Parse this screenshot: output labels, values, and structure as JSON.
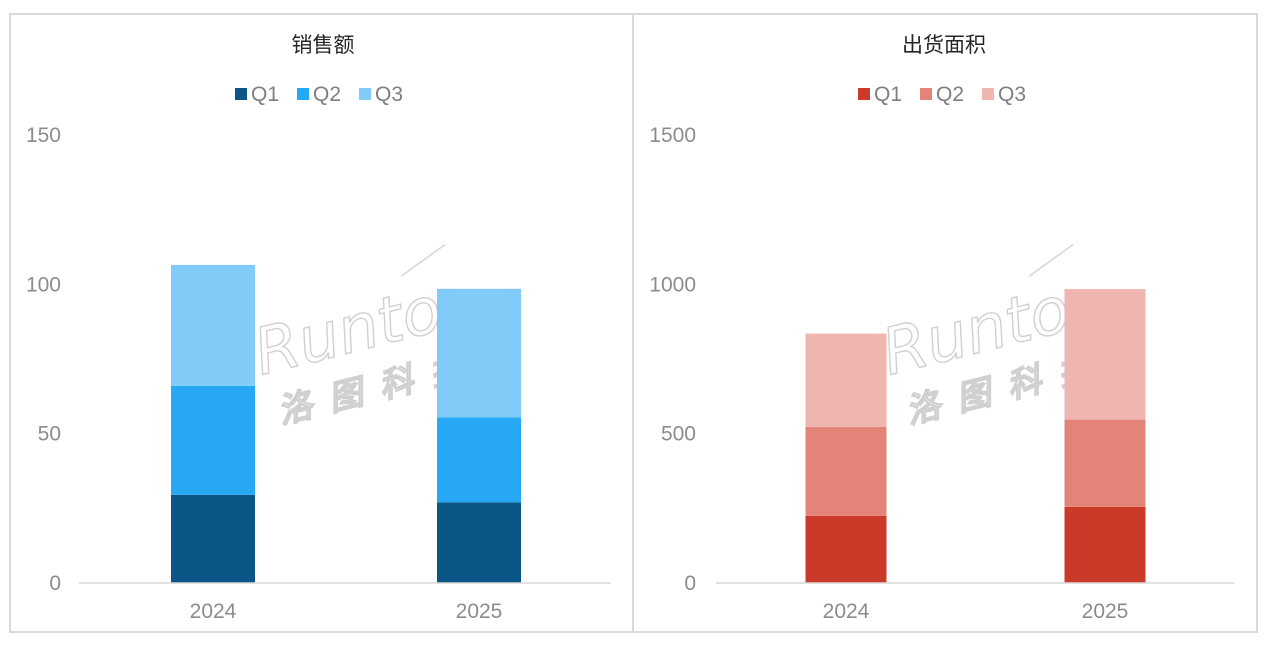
{
  "chart_data": [
    {
      "type": "bar",
      "stacked": true,
      "title": "销售额",
      "categories": [
        "2024",
        "2025"
      ],
      "series": [
        {
          "name": "Q1",
          "color": "#0a5686",
          "values": [
            29.5,
            27
          ]
        },
        {
          "name": "Q2",
          "color": "#27a8f5",
          "values": [
            36.5,
            28.5
          ]
        },
        {
          "name": "Q3",
          "color": "#80cbf8",
          "values": [
            40.5,
            43
          ]
        }
      ],
      "ylim": [
        0,
        150
      ],
      "yticks": [
        0,
        50,
        100,
        150
      ],
      "legend": "top",
      "grid": false,
      "xlabel": "",
      "ylabel": "",
      "watermark": {
        "latin": "Runto",
        "cjk": "洛图科技"
      }
    },
    {
      "type": "bar",
      "stacked": true,
      "title": "出货面积",
      "categories": [
        "2024",
        "2025"
      ],
      "series": [
        {
          "name": "Q1",
          "color": "#cb3a28",
          "values": [
            225,
            255
          ]
        },
        {
          "name": "Q2",
          "color": "#e48479",
          "values": [
            298,
            292
          ]
        },
        {
          "name": "Q3",
          "color": "#eeb6ae",
          "values": [
            312,
            437
          ]
        }
      ],
      "ylim": [
        0,
        1500
      ],
      "yticks": [
        0,
        500,
        1000,
        1500
      ],
      "legend": "top",
      "grid": false,
      "xlabel": "",
      "ylabel": "",
      "watermark": {
        "latin": "Runto",
        "cjk": "洛图科技"
      }
    }
  ]
}
